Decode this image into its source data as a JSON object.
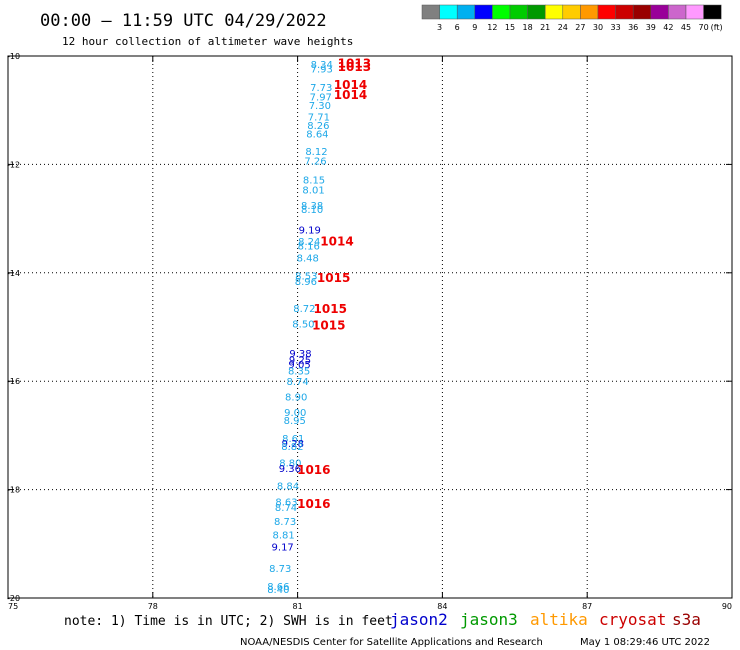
{
  "header": {
    "title": "00:00 – 11:59 UTC 04/29/2022",
    "subtitle": "12 hour collection of altimeter wave heights"
  },
  "legend": {
    "colors": [
      "#808080",
      "#00ffff",
      "#00b0f0",
      "#0000ff",
      "#00ff00",
      "#00cc00",
      "#009900",
      "#ffff00",
      "#ffcc00",
      "#ff9900",
      "#ff0000",
      "#cc0000",
      "#990000",
      "#990099",
      "#cc66cc",
      "#ff99ff",
      "#000000"
    ],
    "labels": [
      "3",
      "6",
      "9",
      "12",
      "15",
      "18",
      "21",
      "24",
      "27",
      "30",
      "33",
      "36",
      "39",
      "42",
      "45",
      "70"
    ],
    "unit": "(ft)"
  },
  "footer": {
    "note": "note: 1) Time is in UTC; 2) SWH is in feet",
    "satellites": [
      {
        "name": "jason2",
        "color": "#0000cc"
      },
      {
        "name": "jason3",
        "color": "#009900"
      },
      {
        "name": "altika",
        "color": "#ff9900"
      },
      {
        "name": "cryosat",
        "color": "#cc0000"
      },
      {
        "name": "s3a",
        "color": "#990000"
      }
    ],
    "credit": "NOAA/NESDIS Center for Satellite Applications and Research",
    "timestamp": "May  1 08:29:46 UTC 2022"
  },
  "chart_data": {
    "type": "scatter",
    "title": "00:00 – 11:59 UTC 04/29/2022",
    "subtitle": "12 hour collection of altimeter wave heights",
    "xlabel": "",
    "ylabel": "",
    "xlim": [
      75,
      90
    ],
    "ylim": [
      -20,
      -10
    ],
    "xticks": [
      75,
      78,
      81,
      84,
      87,
      90
    ],
    "yticks": [
      -10,
      -12,
      -14,
      -16,
      -18,
      -20
    ],
    "xtick_labels": [
      "75",
      "78",
      "81",
      "84",
      "87",
      "90"
    ],
    "ytick_labels": [
      "-10",
      "-12",
      "-14",
      "-16",
      "-18",
      "-20"
    ],
    "grid": true,
    "swh_points": [
      {
        "x": 81.27,
        "y": -10.15,
        "v": "8.34",
        "c": "#1ea8e8"
      },
      {
        "x": 81.27,
        "y": -10.23,
        "v": "7.93",
        "c": "#1ea8e8"
      },
      {
        "x": 81.26,
        "y": -10.57,
        "v": "7.73",
        "c": "#1ea8e8"
      },
      {
        "x": 81.25,
        "y": -10.75,
        "v": "7.97",
        "c": "#1ea8e8"
      },
      {
        "x": 81.23,
        "y": -10.9,
        "v": "7.30",
        "c": "#1ea8e8"
      },
      {
        "x": 81.21,
        "y": -11.12,
        "v": "7.71",
        "c": "#1ea8e8"
      },
      {
        "x": 81.2,
        "y": -11.27,
        "v": "8.26",
        "c": "#1ea8e8"
      },
      {
        "x": 81.18,
        "y": -11.43,
        "v": "8.64",
        "c": "#1ea8e8"
      },
      {
        "x": 81.16,
        "y": -11.75,
        "v": "8.12",
        "c": "#1ea8e8"
      },
      {
        "x": 81.14,
        "y": -11.93,
        "v": "7.26",
        "c": "#1ea8e8"
      },
      {
        "x": 81.11,
        "y": -12.28,
        "v": "8.15",
        "c": "#1ea8e8"
      },
      {
        "x": 81.1,
        "y": -12.46,
        "v": "8.01",
        "c": "#1ea8e8"
      },
      {
        "x": 81.07,
        "y": -12.75,
        "v": "8.38",
        "c": "#1ea8e8"
      },
      {
        "x": 81.07,
        "y": -12.82,
        "v": "8.10",
        "c": "#1ea8e8"
      },
      {
        "x": 81.02,
        "y": -13.2,
        "v": "9.19",
        "c": "#0000cc"
      },
      {
        "x": 81.01,
        "y": -13.41,
        "v": "8.24",
        "c": "#1ea8e8"
      },
      {
        "x": 81.0,
        "y": -13.5,
        "v": "8.16",
        "c": "#1ea8e8"
      },
      {
        "x": 80.98,
        "y": -13.72,
        "v": "8.48",
        "c": "#1ea8e8"
      },
      {
        "x": 80.95,
        "y": -14.05,
        "v": "8.53",
        "c": "#1ea8e8"
      },
      {
        "x": 80.94,
        "y": -14.15,
        "v": "8.96",
        "c": "#1ea8e8"
      },
      {
        "x": 80.91,
        "y": -14.65,
        "v": "8.72",
        "c": "#1ea8e8"
      },
      {
        "x": 80.89,
        "y": -14.94,
        "v": "8.50",
        "c": "#1ea8e8"
      },
      {
        "x": 80.83,
        "y": -15.48,
        "v": "9.38",
        "c": "#0000cc"
      },
      {
        "x": 80.82,
        "y": -15.6,
        "v": "9.25",
        "c": "#0000cc"
      },
      {
        "x": 80.81,
        "y": -15.68,
        "v": "9.05",
        "c": "#0000cc"
      },
      {
        "x": 80.8,
        "y": -15.8,
        "v": "8.35",
        "c": "#1ea8e8"
      },
      {
        "x": 80.77,
        "y": -16.0,
        "v": "8.74",
        "c": "#1ea8e8"
      },
      {
        "x": 80.74,
        "y": -16.28,
        "v": "8.90",
        "c": "#1ea8e8"
      },
      {
        "x": 80.72,
        "y": -16.57,
        "v": "9.00",
        "c": "#1ea8e8"
      },
      {
        "x": 80.71,
        "y": -16.72,
        "v": "8.95",
        "c": "#1ea8e8"
      },
      {
        "x": 80.68,
        "y": -17.05,
        "v": "8.61",
        "c": "#1ea8e8"
      },
      {
        "x": 80.67,
        "y": -17.14,
        "v": "9.28",
        "c": "#0000cc"
      },
      {
        "x": 80.66,
        "y": -17.2,
        "v": "8.82",
        "c": "#1ea8e8"
      },
      {
        "x": 80.62,
        "y": -17.5,
        "v": "8.80",
        "c": "#1ea8e8"
      },
      {
        "x": 80.61,
        "y": -17.6,
        "v": "9.36",
        "c": "#0000cc"
      },
      {
        "x": 80.57,
        "y": -17.92,
        "v": "8.84",
        "c": "#1ea8e8"
      },
      {
        "x": 80.54,
        "y": -18.22,
        "v": "8.63",
        "c": "#1ea8e8"
      },
      {
        "x": 80.53,
        "y": -18.32,
        "v": "8.74",
        "c": "#1ea8e8"
      },
      {
        "x": 80.51,
        "y": -18.58,
        "v": "8.73",
        "c": "#1ea8e8"
      },
      {
        "x": 80.48,
        "y": -18.83,
        "v": "8.81",
        "c": "#1ea8e8"
      },
      {
        "x": 80.46,
        "y": -19.05,
        "v": "9.17",
        "c": "#0000cc"
      },
      {
        "x": 80.41,
        "y": -19.45,
        "v": "8.73",
        "c": "#1ea8e8"
      },
      {
        "x": 80.37,
        "y": -19.78,
        "v": "8.66",
        "c": "#1ea8e8"
      },
      {
        "x": 80.37,
        "y": -19.83,
        "v": "8.40",
        "c": "#1ea8e8"
      }
    ],
    "pressure_points": [
      {
        "x": 81.83,
        "y": -10.12,
        "v": "1013"
      },
      {
        "x": 81.83,
        "y": -10.18,
        "v": "1013"
      },
      {
        "x": 81.75,
        "y": -10.52,
        "v": "1014"
      },
      {
        "x": 81.75,
        "y": -10.7,
        "v": "1014"
      },
      {
        "x": 81.47,
        "y": -13.4,
        "v": "1014"
      },
      {
        "x": 81.4,
        "y": -14.08,
        "v": "1015"
      },
      {
        "x": 81.33,
        "y": -14.65,
        "v": "1015"
      },
      {
        "x": 81.3,
        "y": -14.95,
        "v": "1015"
      },
      {
        "x": 80.99,
        "y": -17.62,
        "v": "1016"
      },
      {
        "x": 80.99,
        "y": -18.25,
        "v": "1016"
      }
    ]
  }
}
